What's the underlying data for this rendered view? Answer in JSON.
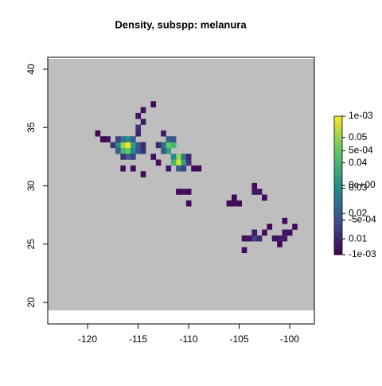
{
  "chart_data": {
    "type": "raster",
    "title": "Density, subspp: melanura",
    "xlim": [
      -123.94,
      -97.56
    ],
    "ylim": [
      18.16,
      41.02
    ],
    "xticks": [
      -120,
      -115,
      -110,
      -105,
      -100
    ],
    "yticks": [
      20,
      25,
      30,
      35,
      40
    ],
    "extent": {
      "x": [
        -123.94,
        -97.56
      ],
      "y": [
        19.32,
        40.89
      ]
    },
    "background_color": "#bebebe",
    "cell_size": 0.5,
    "zlim": [
      -0.001,
      0.001
    ],
    "zticks": [
      {
        "value": 0.001,
        "label": "1e-03"
      },
      {
        "value": 0.0005,
        "label": "5e-04"
      },
      {
        "value": 0,
        "label": "0e+00"
      },
      {
        "value": -0.0005,
        "label": "-5e-04"
      },
      {
        "value": -0.001,
        "label": "-1e-03"
      }
    ],
    "z2lim": [
      0.00375,
      0.0584
    ],
    "z2ticks": [
      0.05,
      0.04,
      0.03,
      0.02,
      0.01
    ],
    "cells": [
      {
        "x": -116.5,
        "y": 33.5,
        "value": 0.05
      },
      {
        "x": -116,
        "y": 33.5,
        "value": 0.058
      },
      {
        "x": -116,
        "y": 33,
        "value": 0.045
      },
      {
        "x": -116.5,
        "y": 33,
        "value": 0.04
      },
      {
        "x": -117,
        "y": 33.5,
        "value": 0.03
      },
      {
        "x": -115.5,
        "y": 33.5,
        "value": 0.035
      },
      {
        "x": -115.5,
        "y": 33,
        "value": 0.03
      },
      {
        "x": -116,
        "y": 34,
        "value": 0.03
      },
      {
        "x": -116.5,
        "y": 34,
        "value": 0.025
      },
      {
        "x": -117,
        "y": 33,
        "value": 0.02
      },
      {
        "x": -115,
        "y": 33.5,
        "value": 0.02
      },
      {
        "x": -115,
        "y": 33,
        "value": 0.018
      },
      {
        "x": -117.5,
        "y": 33.5,
        "value": 0.012
      },
      {
        "x": -117,
        "y": 34,
        "value": 0.015
      },
      {
        "x": -115.5,
        "y": 34,
        "value": 0.02
      },
      {
        "x": -116,
        "y": 32.5,
        "value": 0.02
      },
      {
        "x": -115.5,
        "y": 32.5,
        "value": 0.015
      },
      {
        "x": -116.5,
        "y": 32.5,
        "value": 0.012
      },
      {
        "x": -118,
        "y": 34,
        "value": 0.006
      },
      {
        "x": -118.5,
        "y": 34,
        "value": 0.005
      },
      {
        "x": -119,
        "y": 34.5,
        "value": 0.005
      },
      {
        "x": -114.5,
        "y": 33,
        "value": 0.012
      },
      {
        "x": -114.5,
        "y": 33.5,
        "value": 0.01
      },
      {
        "x": -115,
        "y": 34.5,
        "value": 0.01
      },
      {
        "x": -115,
        "y": 35,
        "value": 0.012
      },
      {
        "x": -114.5,
        "y": 35.5,
        "value": 0.008
      },
      {
        "x": -115,
        "y": 36,
        "value": 0.007
      },
      {
        "x": -114.5,
        "y": 36.5,
        "value": 0.006
      },
      {
        "x": -113.5,
        "y": 37,
        "value": 0.005
      },
      {
        "x": -116.5,
        "y": 31.5,
        "value": 0.006
      },
      {
        "x": -115.5,
        "y": 31.5,
        "value": 0.005
      },
      {
        "x": -114.5,
        "y": 31,
        "value": 0.005
      },
      {
        "x": -112,
        "y": 33.5,
        "value": 0.045
      },
      {
        "x": -111.5,
        "y": 33.5,
        "value": 0.04
      },
      {
        "x": -112,
        "y": 33,
        "value": 0.035
      },
      {
        "x": -111,
        "y": 32.5,
        "value": 0.05
      },
      {
        "x": -111,
        "y": 32,
        "value": 0.055
      },
      {
        "x": -110.5,
        "y": 32,
        "value": 0.035
      },
      {
        "x": -111.5,
        "y": 32.5,
        "value": 0.03
      },
      {
        "x": -111.5,
        "y": 32,
        "value": 0.04
      },
      {
        "x": -112.5,
        "y": 33.5,
        "value": 0.025
      },
      {
        "x": -112,
        "y": 34,
        "value": 0.02
      },
      {
        "x": -111.5,
        "y": 34,
        "value": 0.018
      },
      {
        "x": -112.5,
        "y": 33,
        "value": 0.02
      },
      {
        "x": -110.5,
        "y": 32.5,
        "value": 0.025
      },
      {
        "x": -110.5,
        "y": 31.5,
        "value": 0.015
      },
      {
        "x": -111,
        "y": 31.5,
        "value": 0.02
      },
      {
        "x": -110,
        "y": 32,
        "value": 0.012
      },
      {
        "x": -110,
        "y": 32.5,
        "value": 0.01
      },
      {
        "x": -113,
        "y": 33.5,
        "value": 0.01
      },
      {
        "x": -112.5,
        "y": 34.5,
        "value": 0.008
      },
      {
        "x": -109.5,
        "y": 31.5,
        "value": 0.006
      },
      {
        "x": -109,
        "y": 31.5,
        "value": 0.005
      },
      {
        "x": -112,
        "y": 31.5,
        "value": 0.008
      },
      {
        "x": -113,
        "y": 32,
        "value": 0.006
      },
      {
        "x": -113.5,
        "y": 32.5,
        "value": 0.006
      },
      {
        "x": -110.5,
        "y": 29.5,
        "value": 0.006
      },
      {
        "x": -110,
        "y": 29.5,
        "value": 0.005
      },
      {
        "x": -111,
        "y": 29.5,
        "value": 0.005
      },
      {
        "x": -110,
        "y": 28.5,
        "value": 0.005
      },
      {
        "x": -103.5,
        "y": 29.5,
        "value": 0.008
      },
      {
        "x": -103,
        "y": 29.5,
        "value": 0.007
      },
      {
        "x": -103.5,
        "y": 30,
        "value": 0.006
      },
      {
        "x": -102.5,
        "y": 29,
        "value": 0.005
      },
      {
        "x": -105.5,
        "y": 28.5,
        "value": 0.006
      },
      {
        "x": -105,
        "y": 28.5,
        "value": 0.005
      },
      {
        "x": -105.5,
        "y": 29,
        "value": 0.005
      },
      {
        "x": -106,
        "y": 28.5,
        "value": 0.005
      },
      {
        "x": -103.5,
        "y": 25.5,
        "value": 0.015
      },
      {
        "x": -103,
        "y": 25.5,
        "value": 0.01
      },
      {
        "x": -103.5,
        "y": 26,
        "value": 0.008
      },
      {
        "x": -104,
        "y": 25.5,
        "value": 0.007
      },
      {
        "x": -104.5,
        "y": 25.5,
        "value": 0.006
      },
      {
        "x": -102.5,
        "y": 26,
        "value": 0.006
      },
      {
        "x": -101,
        "y": 25.5,
        "value": 0.008
      },
      {
        "x": -100.5,
        "y": 25.5,
        "value": 0.009
      },
      {
        "x": -100.5,
        "y": 26,
        "value": 0.007
      },
      {
        "x": -101.5,
        "y": 25.5,
        "value": 0.006
      },
      {
        "x": -100,
        "y": 26,
        "value": 0.006
      },
      {
        "x": -101,
        "y": 25,
        "value": 0.005
      },
      {
        "x": -102,
        "y": 26.5,
        "value": 0.005
      },
      {
        "x": -99.5,
        "y": 26.5,
        "value": 0.005
      },
      {
        "x": -100.5,
        "y": 27,
        "value": 0.005
      },
      {
        "x": -104.5,
        "y": 24.5,
        "value": 0.005
      }
    ]
  }
}
